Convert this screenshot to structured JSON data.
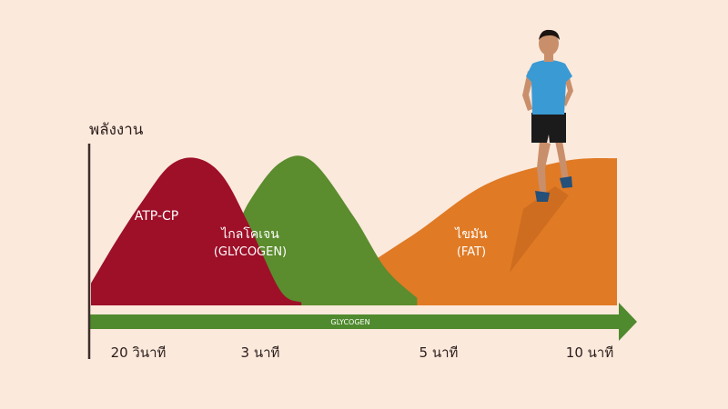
{
  "chart_data": {
    "type": "area",
    "ylabel": "พลังงาน",
    "x_ticks": [
      "20 วินาที",
      "3 นาที",
      "5 นาที",
      "10 นาที"
    ],
    "series": [
      {
        "name": "ATP-CP",
        "color": "#9e0f28",
        "points": [
          [
            0,
            0.15
          ],
          [
            0.5,
            0.45
          ],
          [
            1.0,
            0.72
          ],
          [
            1.5,
            0.95
          ],
          [
            2.0,
            1.0
          ],
          [
            2.5,
            0.88
          ],
          [
            3.0,
            0.55
          ],
          [
            3.6,
            0.1
          ],
          [
            4.0,
            0.02
          ]
        ]
      },
      {
        "name": "ไกลโคเจน",
        "name_sub": "(GLYCOGEN)",
        "color": "#5b8c2e",
        "points": [
          [
            0.5,
            0.0
          ],
          [
            1.5,
            0.1
          ],
          [
            2.5,
            0.35
          ],
          [
            3.0,
            0.7
          ],
          [
            3.6,
            0.97
          ],
          [
            4.2,
            0.98
          ],
          [
            5.0,
            0.6
          ],
          [
            5.6,
            0.25
          ],
          [
            6.2,
            0.05
          ]
        ]
      },
      {
        "name": "ไขมัน",
        "name_sub": "(FAT)",
        "color": "#e07a25",
        "points": [
          [
            0,
            0.0
          ],
          [
            2.5,
            0.05
          ],
          [
            4.5,
            0.15
          ],
          [
            6.0,
            0.45
          ],
          [
            7.5,
            0.82
          ],
          [
            9.0,
            0.98
          ],
          [
            10,
            1.0
          ]
        ]
      }
    ],
    "baseline_arrow": {
      "label": "GLYCOGEN",
      "color": "#4f8a2e"
    }
  },
  "photo": {
    "subject": "runner-icon"
  }
}
